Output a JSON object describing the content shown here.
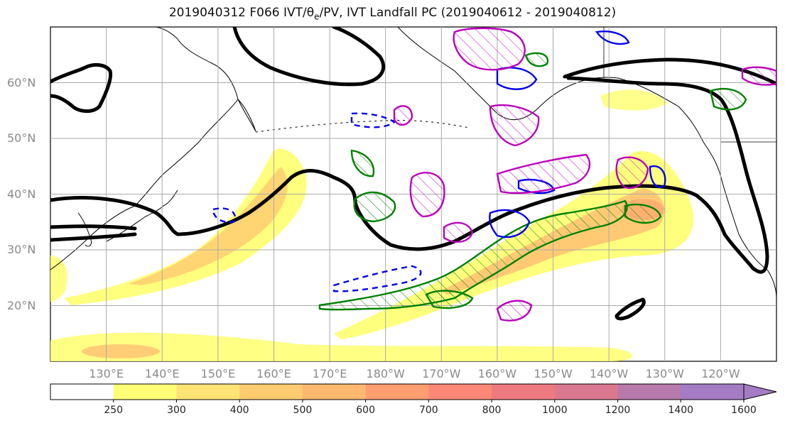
{
  "title": {
    "prefix": "2019040312 F066 IVT/",
    "theta": "θ",
    "theta_sub": "e",
    "suffix": "/PV, IVT Landfall PC (2019040612 - 2019040812)"
  },
  "map": {
    "projection": "PlateCarree",
    "lon_range_east": [
      120,
      250
    ],
    "lat_range": [
      10,
      70
    ],
    "lat_labels": [
      "20°N",
      "30°N",
      "40°N",
      "50°N",
      "60°N"
    ],
    "lat_values": [
      20,
      30,
      40,
      50,
      60
    ],
    "lon_labels": [
      "130°E",
      "140°E",
      "150°E",
      "160°E",
      "170°E",
      "180°W",
      "170°W",
      "160°W",
      "150°W",
      "140°W",
      "130°W",
      "120°W"
    ],
    "lon_values": [
      130,
      140,
      150,
      160,
      170,
      180,
      190,
      200,
      210,
      220,
      230,
      240
    ],
    "grid": true,
    "colors": {
      "coast": "#000000",
      "theta_e_contour": "#000000",
      "pv_contour": "#0000ee",
      "ivt_pc_contour": "#008000",
      "landfall_contour": "#bb00bb"
    }
  },
  "colorbar": {
    "levels": [
      "250",
      "300",
      "400",
      "500",
      "600",
      "700",
      "800",
      "1000",
      "1200",
      "1400",
      "1600"
    ],
    "colors": [
      "#ffffff",
      "#ffff77",
      "#ffe377",
      "#ffcb70",
      "#ffb870",
      "#ff9e70",
      "#ff8777",
      "#ee7a80",
      "#da7890",
      "#b87aaa",
      "#a37cc4"
    ],
    "extend": "max"
  }
}
